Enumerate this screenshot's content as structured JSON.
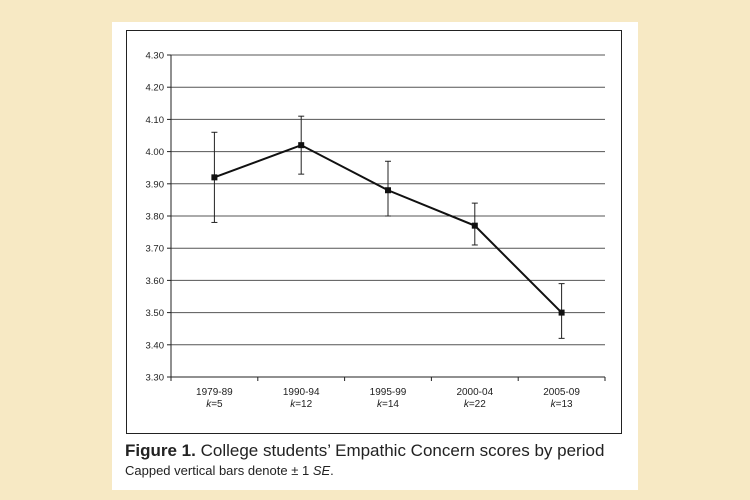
{
  "chart_data": {
    "type": "line",
    "categories": [
      "1979-89",
      "1990-94",
      "1995-99",
      "2000-04",
      "2005-09"
    ],
    "k_labels": [
      "k=5",
      "k=12",
      "k=14",
      "k=22",
      "k=13"
    ],
    "values": [
      3.92,
      4.02,
      3.88,
      3.77,
      3.5
    ],
    "error_upper": [
      4.06,
      4.11,
      3.97,
      3.84,
      3.59
    ],
    "error_lower": [
      3.78,
      3.93,
      3.8,
      3.71,
      3.42
    ],
    "y_ticks": [
      "4.30",
      "4.20",
      "4.10",
      "4.00",
      "3.90",
      "3.80",
      "3.70",
      "3.60",
      "3.50",
      "3.40",
      "3.30"
    ],
    "ylim": [
      3.3,
      4.3
    ],
    "grid": true,
    "title": "",
    "xlabel": "",
    "ylabel": ""
  },
  "caption": {
    "figure_label": "Figure 1.",
    "text": "College students’ Empathic Concern scores by period",
    "note_prefix": "Capped vertical bars denote ± 1 ",
    "note_se": "SE",
    "note_suffix": "."
  },
  "colors": {
    "background": "#f7e9c4",
    "line": "#111111",
    "grid": "#555555"
  }
}
